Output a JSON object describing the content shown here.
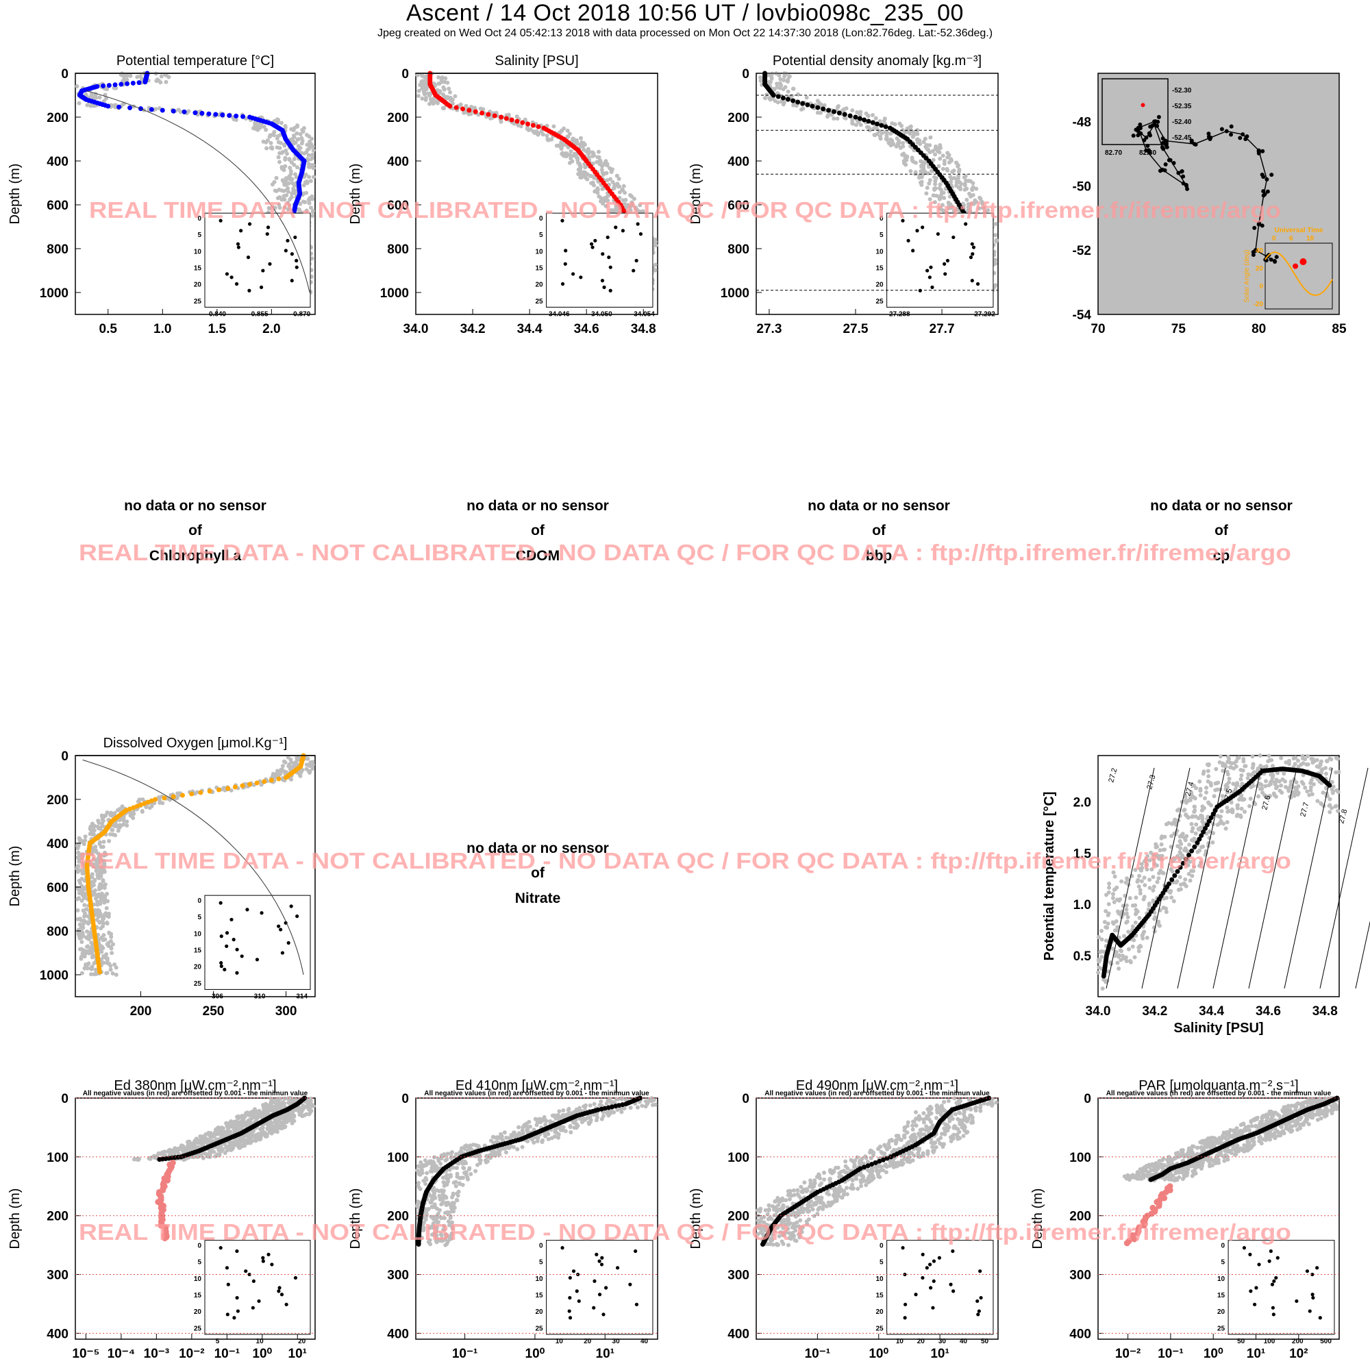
{
  "header": {
    "title": "Ascent / 14 Oct 2018 10:56 UT /  lovbio098c_235_00",
    "subtitle": "Jpeg created on Wed Oct 24 05:42:13 2018 with data processed on Mon Oct 22 14:37:30 2018 (Lon:82.76deg. Lat:-52.36deg.)"
  },
  "watermark": "REAL TIME DATA - NOT CALIBRATED - NO DATA QC   /  FOR QC DATA : ftp://ftp.ifremer.fr/ifremer/argo",
  "no_data": {
    "line1": "no data or no sensor",
    "line2": "of",
    "panels": [
      "Chlorophyll a",
      "CDOM",
      "bbp",
      "cp",
      "Nitrate"
    ]
  },
  "ed_note": "All negative values (in red) are offsetted by 0.001 - the minimun value",
  "chart_data": [
    {
      "id": "temp",
      "type": "scatter",
      "title": "Potential temperature [°C]",
      "ylabel": "Depth (m)",
      "xlim": [
        0.2,
        2.4
      ],
      "ylim": [
        0,
        1100
      ],
      "xticks": [
        "0.5",
        "1.0",
        "1.5",
        "2.0"
      ],
      "yticks": [
        "0",
        "200",
        "400",
        "600",
        "800",
        "1000"
      ],
      "color": "#0000ff",
      "series": [
        {
          "depth": [
            0,
            20,
            40,
            60,
            80,
            100,
            120,
            150,
            180,
            200,
            230,
            260,
            300,
            350,
            400,
            450,
            500,
            550,
            600,
            650,
            700,
            800,
            900,
            1000
          ],
          "values": [
            0.86,
            0.85,
            0.84,
            0.4,
            0.26,
            0.24,
            0.3,
            0.5,
            1.3,
            1.8,
            2.0,
            2.1,
            2.13,
            2.2,
            2.3,
            2.28,
            2.25,
            2.26,
            2.22,
            2.2,
            2.18,
            2.15,
            2.13,
            2.12
          ]
        }
      ],
      "inset": {
        "xticks": [
          "0.840",
          "0.855",
          "0.870"
        ],
        "yticks": [
          "0",
          "5",
          "10",
          "15",
          "20",
          "25"
        ]
      }
    },
    {
      "id": "sal",
      "type": "scatter",
      "title": "Salinity [PSU]",
      "ylabel": "Depth (m)",
      "xlim": [
        34.0,
        34.85
      ],
      "ylim": [
        0,
        1100
      ],
      "xticks": [
        "34.0",
        "34.2",
        "34.4",
        "34.6",
        "34.8"
      ],
      "yticks": [
        "0",
        "200",
        "400",
        "600",
        "800",
        "1000"
      ],
      "color": "#ff0000",
      "series": [
        {
          "depth": [
            0,
            50,
            100,
            150,
            200,
            250,
            300,
            350,
            400,
            500,
            600,
            700,
            800,
            900,
            1000
          ],
          "values": [
            34.05,
            34.05,
            34.07,
            34.12,
            34.3,
            34.45,
            34.52,
            34.57,
            34.6,
            34.66,
            34.72,
            34.76,
            34.79,
            34.8,
            34.81
          ]
        }
      ],
      "inset": {
        "xticks": [
          "34.046",
          "34.050",
          "34.054"
        ],
        "yticks": [
          "0",
          "5",
          "10",
          "15",
          "20",
          "25"
        ]
      }
    },
    {
      "id": "dens",
      "type": "scatter",
      "title": "Potential density anomaly [kg.m⁻³]",
      "ylabel": "Depth (m)",
      "xlim": [
        27.27,
        27.83
      ],
      "ylim": [
        0,
        1100
      ],
      "xticks": [
        "27.3",
        "27.5",
        "27.7"
      ],
      "yticks": [
        "0",
        "200",
        "400",
        "600",
        "800",
        "1000"
      ],
      "color": "#000000",
      "series": [
        {
          "depth": [
            0,
            50,
            100,
            150,
            200,
            250,
            300,
            400,
            500,
            600,
            700,
            800,
            900,
            1000
          ],
          "values": [
            27.29,
            27.29,
            27.31,
            27.4,
            27.5,
            27.58,
            27.62,
            27.67,
            27.71,
            27.74,
            27.77,
            27.79,
            27.8,
            27.81
          ]
        }
      ],
      "inset": {
        "xticks": [
          "27.288",
          "27.292"
        ],
        "yticks": [
          "0",
          "5",
          "10",
          "15",
          "20",
          "25"
        ]
      }
    },
    {
      "id": "map",
      "type": "scatter",
      "xlim": [
        70,
        85
      ],
      "ylim": [
        -54,
        -46.5
      ],
      "xticks": [
        "70",
        "75",
        "80",
        "85"
      ],
      "yticks": [
        "-48",
        "-50",
        "-52",
        "-54"
      ],
      "series": [
        {
          "lon": [
            72.5,
            73,
            73.5,
            74,
            74.5,
            75,
            75.5,
            74,
            73,
            72.5,
            73.5,
            74.2,
            76,
            77,
            78,
            79,
            80,
            80.5,
            80.3,
            80,
            79.8,
            80.5,
            81
          ],
          "lat": [
            -48.3,
            -48.5,
            -48.1,
            -48.8,
            -49.2,
            -49.6,
            -50.0,
            -49.5,
            -48.9,
            -48.2,
            -48.0,
            -48.6,
            -48.7,
            -48.5,
            -48.3,
            -48.4,
            -48.9,
            -49.8,
            -50.3,
            -51.2,
            -52.0,
            -52.2,
            -52.36
          ]
        }
      ],
      "current_position": {
        "lon": 82.76,
        "lat": -52.36
      },
      "inset": {
        "lat_labels": [
          "-52.30",
          "-52.35",
          "-52.40",
          "-52.45"
        ],
        "lon_labels": [
          "82.70",
          "82.80"
        ]
      },
      "sun_inset": {
        "title": "Universal Time",
        "ylabel": "Solar Angle (deg)",
        "xticks": [
          "0",
          "6",
          "18"
        ],
        "yticks": [
          "40",
          "20",
          "0",
          "-20"
        ]
      }
    },
    {
      "id": "oxy",
      "type": "scatter",
      "title": "Dissolved Oxygen [μmol.Kg⁻¹]",
      "ylabel": "Depth (m)",
      "xlim": [
        155,
        320
      ],
      "ylim": [
        0,
        1100
      ],
      "xticks": [
        "200",
        "250",
        "300"
      ],
      "yticks": [
        "0",
        "200",
        "400",
        "600",
        "800",
        "1000"
      ],
      "color": "#ffa500",
      "series": [
        {
          "depth": [
            0,
            50,
            100,
            150,
            200,
            250,
            300,
            350,
            400,
            500,
            600,
            700,
            800,
            900,
            1000
          ],
          "values": [
            312,
            310,
            300,
            260,
            210,
            190,
            180,
            175,
            165,
            163,
            164,
            166,
            168,
            170,
            172
          ]
        }
      ],
      "inset": {
        "xticks": [
          "306",
          "310",
          "314"
        ],
        "yticks": [
          "0",
          "5",
          "10",
          "15",
          "20",
          "25"
        ]
      }
    },
    {
      "id": "ts",
      "type": "scatter",
      "xlabel": "Salinity [PSU]",
      "ylabel": "Potential temperature [°C]",
      "xlim": [
        34.0,
        34.85
      ],
      "ylim": [
        0.1,
        2.45
      ],
      "xticks": [
        "34.0",
        "34.2",
        "34.4",
        "34.6",
        "34.8"
      ],
      "yticks": [
        "0.5",
        "1.0",
        "1.5",
        "2.0"
      ],
      "isopycnals": [
        "27.2",
        "27.3",
        "27.4",
        "27.5",
        "27.6",
        "27.7",
        "27.8",
        "27.9"
      ],
      "series": [
        {
          "salinity": [
            34.02,
            34.03,
            34.05,
            34.08,
            34.12,
            34.18,
            34.25,
            34.35,
            34.42,
            34.5,
            34.58,
            34.65,
            34.72,
            34.78,
            34.82
          ],
          "values": [
            0.3,
            0.5,
            0.7,
            0.6,
            0.7,
            0.9,
            1.2,
            1.6,
            1.95,
            2.1,
            2.3,
            2.32,
            2.3,
            2.25,
            2.15
          ]
        }
      ]
    },
    {
      "id": "ed380",
      "type": "scatter",
      "xscale": "log",
      "title": "Ed 380nm [μW.cm⁻².nm⁻¹]",
      "ylabel": "Depth (m)",
      "xlim": [
        -5.3,
        1.5
      ],
      "ylim": [
        0,
        410
      ],
      "xticks": [
        "10⁻⁵",
        "10⁻⁴",
        "10⁻³",
        "10⁻²",
        "10⁻¹",
        "10⁰",
        "10¹"
      ],
      "yticks": [
        "0",
        "100",
        "200",
        "300",
        "400"
      ],
      "series": [
        {
          "depth": [
            0,
            10,
            20,
            30,
            40,
            50,
            60,
            70,
            80,
            90,
            100,
            105
          ],
          "values_log10": [
            1.2,
            1.0,
            0.7,
            0.3,
            0.0,
            -0.3,
            -0.6,
            -1.0,
            -1.4,
            -1.8,
            -2.3,
            -3.0
          ]
        }
      ],
      "negative_series": {
        "depth": [
          110,
          130,
          150,
          170,
          190,
          210,
          230,
          240
        ],
        "values_log10": [
          -2.6,
          -2.7,
          -2.8,
          -2.9,
          -2.85,
          -2.8,
          -2.8,
          -2.75
        ]
      },
      "inset": {
        "xticks": [
          "5",
          "10",
          "20"
        ],
        "yticks": [
          "0",
          "5",
          "10",
          "15",
          "20",
          "25"
        ]
      }
    },
    {
      "id": "ed410",
      "type": "scatter",
      "xscale": "log",
      "title": "Ed 410nm [μW.cm⁻².nm⁻¹]",
      "ylabel": "Depth (m)",
      "xlim": [
        -1.7,
        1.75
      ],
      "ylim": [
        0,
        410
      ],
      "xticks": [
        "10⁻¹",
        "10⁰",
        "10¹"
      ],
      "yticks": [
        "0",
        "100",
        "200",
        "300",
        "400"
      ],
      "series": [
        {
          "depth": [
            0,
            10,
            20,
            30,
            40,
            50,
            60,
            70,
            80,
            90,
            100,
            120,
            140,
            160,
            180,
            200,
            220,
            240,
            250
          ],
          "values_log10": [
            1.5,
            1.3,
            0.9,
            0.6,
            0.4,
            0.2,
            0.0,
            -0.2,
            -0.5,
            -0.8,
            -1.05,
            -1.3,
            -1.45,
            -1.55,
            -1.6,
            -1.63,
            -1.65,
            -1.66,
            -1.66
          ]
        }
      ],
      "inset": {
        "xticks": [
          "10",
          "20",
          "30",
          "40"
        ],
        "yticks": [
          "0",
          "5",
          "10",
          "15",
          "20",
          "25"
        ]
      }
    },
    {
      "id": "ed490",
      "type": "scatter",
      "xscale": "log",
      "title": "Ed 490nm [μW.cm⁻².nm⁻¹]",
      "ylabel": "Depth (m)",
      "xlim": [
        -2.0,
        1.95
      ],
      "ylim": [
        0,
        410
      ],
      "xticks": [
        "10⁻¹",
        "10⁰",
        "10¹"
      ],
      "yticks": [
        "0",
        "100",
        "200",
        "300",
        "400"
      ],
      "series": [
        {
          "depth": [
            0,
            10,
            20,
            40,
            60,
            80,
            100,
            120,
            140,
            160,
            180,
            200,
            220,
            240,
            250
          ],
          "values_log10": [
            1.8,
            1.5,
            1.2,
            1.0,
            0.9,
            0.6,
            0.2,
            -0.3,
            -0.6,
            -1.0,
            -1.3,
            -1.6,
            -1.75,
            -1.85,
            -1.9
          ]
        }
      ],
      "inset": {
        "xticks": [
          "10",
          "20",
          "30",
          "40",
          "50"
        ],
        "yticks": [
          "0",
          "5",
          "10",
          "15",
          "20",
          "25"
        ]
      }
    },
    {
      "id": "par",
      "type": "scatter",
      "xscale": "log",
      "title": "PAR [μmolquanta.m⁻².s⁻¹]",
      "ylabel": "Depth (m)",
      "xlim": [
        -2.7,
        2.95
      ],
      "ylim": [
        0,
        410
      ],
      "xticks": [
        "10⁻²",
        "10⁻¹",
        "10⁰",
        "10¹",
        "10²"
      ],
      "yticks": [
        "0",
        "100",
        "200",
        "300",
        "400"
      ],
      "series": [
        {
          "depth": [
            0,
            10,
            20,
            30,
            40,
            50,
            60,
            70,
            80,
            90,
            100,
            110,
            120,
            130,
            140
          ],
          "values_log10": [
            2.9,
            2.6,
            2.2,
            1.9,
            1.6,
            1.3,
            1.0,
            0.6,
            0.3,
            0.0,
            -0.3,
            -0.6,
            -1.0,
            -1.2,
            -1.5
          ]
        }
      ],
      "negative_series": {
        "depth": [
          150,
          170,
          190,
          210,
          230,
          250
        ],
        "values_log10": [
          -1.0,
          -1.2,
          -1.4,
          -1.6,
          -1.8,
          -2.0
        ]
      },
      "inset": {
        "xticks": [
          "50",
          "100",
          "200",
          "500"
        ],
        "yticks": [
          "0",
          "5",
          "10",
          "15",
          "20",
          "25"
        ]
      }
    }
  ]
}
